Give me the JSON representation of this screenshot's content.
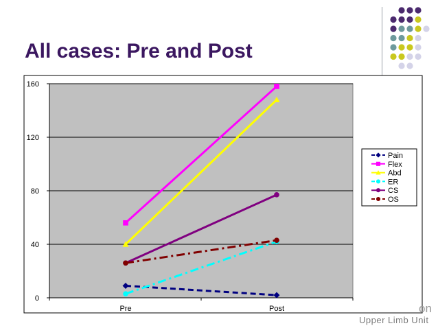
{
  "slide": {
    "title": "All cases: Pre and Post",
    "footer_text": "Upper Limb Unit",
    "footer_fragment": "on",
    "dot_colors": {
      "purple": "#4b2a6e",
      "teal": "#6e9a9c",
      "lime": "#c9c81e",
      "lavender": "#d4d3e8"
    }
  },
  "chart_data": {
    "type": "line",
    "categories": [
      "Pre",
      "Post"
    ],
    "ylim": [
      0,
      160
    ],
    "yticks": [
      0,
      40,
      80,
      120,
      160
    ],
    "grid": "horizontal",
    "legend_position": "right",
    "plot_background": "#c0c0c0",
    "series": [
      {
        "name": "Pain",
        "values": [
          9,
          2
        ],
        "color": "#000080",
        "marker": "diamond",
        "dash": "dashed"
      },
      {
        "name": "Flex",
        "values": [
          56,
          158
        ],
        "color": "#ff00ff",
        "marker": "square",
        "dash": "solid"
      },
      {
        "name": "Abd",
        "values": [
          40,
          148
        ],
        "color": "#ffff00",
        "marker": "triangle",
        "dash": "solid"
      },
      {
        "name": "ER",
        "values": [
          3,
          42
        ],
        "color": "#00ffff",
        "marker": "circle",
        "dash": "dashdot"
      },
      {
        "name": "CS",
        "values": [
          26,
          77
        ],
        "color": "#800080",
        "marker": "circle",
        "dash": "solid"
      },
      {
        "name": "OS",
        "values": [
          26,
          43
        ],
        "color": "#800000",
        "marker": "circle",
        "dash": "dashdot"
      }
    ]
  }
}
